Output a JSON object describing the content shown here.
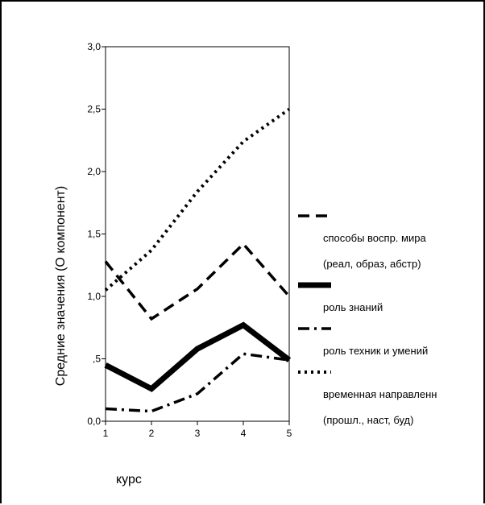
{
  "chart_data": {
    "type": "line",
    "title": "",
    "xlabel": "курс",
    "ylabel": "Средние значения (O компонент)",
    "x": [
      1,
      2,
      3,
      4,
      5
    ],
    "xlim": [
      1,
      5
    ],
    "ylim": [
      0,
      3.0
    ],
    "xticks": [
      "1",
      "2",
      "3",
      "4",
      "5"
    ],
    "yticks": [
      {
        "value": 0.0,
        "label": "0,0"
      },
      {
        "value": 0.5,
        "label": ",5"
      },
      {
        "value": 1.0,
        "label": "1,0"
      },
      {
        "value": 1.5,
        "label": "1,5"
      },
      {
        "value": 2.0,
        "label": "2,0"
      },
      {
        "value": 2.5,
        "label": "2,5"
      },
      {
        "value": 3.0,
        "label": "3,0"
      }
    ],
    "grid": false,
    "legend_position": "right",
    "series": [
      {
        "name": "способы воспр. мира (реал, образ, абстр)",
        "label_lines": [
          "способы воспр. мира",
          "(реал, образ, абстр)"
        ],
        "style": "dashed",
        "values": [
          1.28,
          0.82,
          1.06,
          1.42,
          1.0
        ]
      },
      {
        "name": "роль знаний",
        "label_lines": [
          "роль знаний"
        ],
        "style": "solid-thick",
        "values": [
          0.45,
          0.26,
          0.58,
          0.77,
          0.49
        ]
      },
      {
        "name": "роль техник и умений",
        "label_lines": [
          "роль техник и умений"
        ],
        "style": "dash-dot",
        "values": [
          0.1,
          0.08,
          0.22,
          0.54,
          0.49
        ]
      },
      {
        "name": "временная направленн (прошл., наст, буд)",
        "label_lines": [
          "временная направленн",
          "(прошл., наст, буд)"
        ],
        "style": "dotted",
        "values": [
          1.05,
          1.37,
          1.84,
          2.24,
          2.5
        ]
      }
    ]
  }
}
